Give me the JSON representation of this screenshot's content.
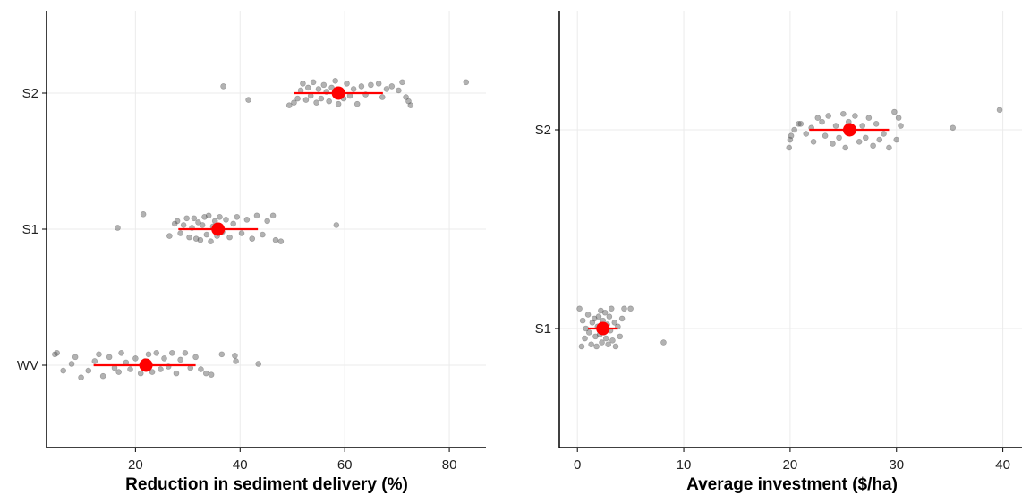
{
  "colors": {
    "point": "#555555",
    "point_opacity": 0.45,
    "summary": "#ff0000",
    "grid": "#ebebeb",
    "axis": "#000000"
  },
  "chart_data": [
    {
      "type": "scatter",
      "subtype": "jittered dot plot with mean and range",
      "xlabel": "Reduction in sediment delivery (%)",
      "ylabel": "",
      "categories": [
        "WV",
        "S1",
        "S2"
      ],
      "xlim": [
        3,
        87
      ],
      "xticks": [
        20,
        40,
        60,
        80
      ],
      "grid": true,
      "legend": "none",
      "series": [
        {
          "category": "S2",
          "mean": 58.8,
          "interval": [
            50.3,
            67.3
          ],
          "points": [
            {
              "x": 36.8,
              "j": 0.05
            },
            {
              "x": 41.6,
              "j": -0.05
            },
            {
              "x": 49.4,
              "j": -0.09
            },
            {
              "x": 50.3,
              "j": -0.07
            },
            {
              "x": 51.0,
              "j": -0.04
            },
            {
              "x": 51.6,
              "j": 0.02
            },
            {
              "x": 52.0,
              "j": 0.07
            },
            {
              "x": 52.6,
              "j": -0.05
            },
            {
              "x": 53.0,
              "j": 0.04
            },
            {
              "x": 53.5,
              "j": -0.02
            },
            {
              "x": 54.0,
              "j": 0.08
            },
            {
              "x": 54.6,
              "j": -0.07
            },
            {
              "x": 55.0,
              "j": 0.03
            },
            {
              "x": 55.5,
              "j": -0.04
            },
            {
              "x": 56.0,
              "j": 0.06
            },
            {
              "x": 56.5,
              "j": 0.01
            },
            {
              "x": 57.0,
              "j": -0.06
            },
            {
              "x": 57.5,
              "j": 0.04
            },
            {
              "x": 58.2,
              "j": 0.09
            },
            {
              "x": 58.8,
              "j": -0.08
            },
            {
              "x": 59.3,
              "j": 0.02
            },
            {
              "x": 59.8,
              "j": -0.04
            },
            {
              "x": 60.4,
              "j": 0.07
            },
            {
              "x": 61.0,
              "j": -0.02
            },
            {
              "x": 61.7,
              "j": 0.03
            },
            {
              "x": 62.4,
              "j": -0.08
            },
            {
              "x": 63.2,
              "j": 0.05
            },
            {
              "x": 64.0,
              "j": -0.01
            },
            {
              "x": 65.0,
              "j": 0.06
            },
            {
              "x": 66.5,
              "j": 0.07
            },
            {
              "x": 67.2,
              "j": -0.03
            },
            {
              "x": 68.0,
              "j": 0.03
            },
            {
              "x": 69.0,
              "j": 0.05
            },
            {
              "x": 70.3,
              "j": 0.02
            },
            {
              "x": 71.0,
              "j": 0.08
            },
            {
              "x": 71.7,
              "j": -0.03
            },
            {
              "x": 72.2,
              "j": -0.06
            },
            {
              "x": 72.6,
              "j": -0.09
            },
            {
              "x": 83.2,
              "j": 0.08
            }
          ]
        },
        {
          "category": "S1",
          "mean": 35.8,
          "interval": [
            28.2,
            43.4
          ],
          "points": [
            {
              "x": 16.6,
              "j": 0.01
            },
            {
              "x": 21.5,
              "j": 0.11
            },
            {
              "x": 26.5,
              "j": -0.05
            },
            {
              "x": 27.5,
              "j": 0.04
            },
            {
              "x": 28.0,
              "j": 0.06
            },
            {
              "x": 28.6,
              "j": -0.03
            },
            {
              "x": 29.2,
              "j": 0.03
            },
            {
              "x": 29.8,
              "j": 0.08
            },
            {
              "x": 30.3,
              "j": -0.06
            },
            {
              "x": 30.8,
              "j": 0.01
            },
            {
              "x": 31.2,
              "j": 0.08
            },
            {
              "x": 31.6,
              "j": -0.07
            },
            {
              "x": 32.0,
              "j": 0.05
            },
            {
              "x": 32.4,
              "j": -0.08
            },
            {
              "x": 32.8,
              "j": 0.03
            },
            {
              "x": 33.2,
              "j": 0.09
            },
            {
              "x": 33.6,
              "j": -0.04
            },
            {
              "x": 34.0,
              "j": 0.1
            },
            {
              "x": 34.4,
              "j": -0.09
            },
            {
              "x": 34.8,
              "j": 0.02
            },
            {
              "x": 35.2,
              "j": 0.06
            },
            {
              "x": 35.6,
              "j": -0.05
            },
            {
              "x": 36.1,
              "j": 0.09
            },
            {
              "x": 36.6,
              "j": -0.02
            },
            {
              "x": 37.3,
              "j": 0.07
            },
            {
              "x": 38.0,
              "j": -0.06
            },
            {
              "x": 38.7,
              "j": 0.04
            },
            {
              "x": 39.4,
              "j": 0.09
            },
            {
              "x": 40.3,
              "j": -0.03
            },
            {
              "x": 41.3,
              "j": 0.07
            },
            {
              "x": 42.3,
              "j": -0.07
            },
            {
              "x": 43.2,
              "j": 0.1
            },
            {
              "x": 44.3,
              "j": -0.04
            },
            {
              "x": 45.2,
              "j": 0.06
            },
            {
              "x": 46.3,
              "j": 0.1
            },
            {
              "x": 46.8,
              "j": -0.08
            },
            {
              "x": 47.8,
              "j": -0.09
            },
            {
              "x": 58.4,
              "j": 0.03
            }
          ]
        },
        {
          "category": "WV",
          "mean": 22.0,
          "interval": [
            12.0,
            31.5
          ],
          "points": [
            {
              "x": 4.6,
              "j": 0.08
            },
            {
              "x": 5.0,
              "j": 0.09
            },
            {
              "x": 6.2,
              "j": -0.04
            },
            {
              "x": 7.8,
              "j": 0.01
            },
            {
              "x": 8.5,
              "j": 0.06
            },
            {
              "x": 9.6,
              "j": -0.09
            },
            {
              "x": 11.0,
              "j": -0.04
            },
            {
              "x": 12.2,
              "j": 0.03
            },
            {
              "x": 13.0,
              "j": 0.08
            },
            {
              "x": 13.8,
              "j": -0.08
            },
            {
              "x": 15.0,
              "j": 0.06
            },
            {
              "x": 16.0,
              "j": -0.02
            },
            {
              "x": 16.8,
              "j": -0.05
            },
            {
              "x": 17.3,
              "j": 0.09
            },
            {
              "x": 18.2,
              "j": 0.02
            },
            {
              "x": 19.0,
              "j": -0.03
            },
            {
              "x": 20.0,
              "j": 0.05
            },
            {
              "x": 21.0,
              "j": -0.06
            },
            {
              "x": 21.8,
              "j": 0.03
            },
            {
              "x": 22.5,
              "j": 0.08
            },
            {
              "x": 23.2,
              "j": -0.05
            },
            {
              "x": 24.0,
              "j": 0.09
            },
            {
              "x": 24.8,
              "j": -0.03
            },
            {
              "x": 25.5,
              "j": 0.05
            },
            {
              "x": 26.3,
              "j": -0.01
            },
            {
              "x": 27.0,
              "j": 0.09
            },
            {
              "x": 27.8,
              "j": -0.06
            },
            {
              "x": 28.6,
              "j": 0.04
            },
            {
              "x": 29.5,
              "j": 0.09
            },
            {
              "x": 30.5,
              "j": -0.02
            },
            {
              "x": 31.5,
              "j": 0.06
            },
            {
              "x": 32.5,
              "j": -0.03
            },
            {
              "x": 33.5,
              "j": -0.06
            },
            {
              "x": 34.5,
              "j": -0.07
            },
            {
              "x": 36.5,
              "j": 0.08
            },
            {
              "x": 39.0,
              "j": 0.07
            },
            {
              "x": 39.2,
              "j": 0.03
            },
            {
              "x": 43.5,
              "j": 0.01
            }
          ]
        }
      ]
    },
    {
      "type": "scatter",
      "subtype": "jittered dot plot with mean and range",
      "xlabel": "Average investment ($/ha)",
      "ylabel": "",
      "categories": [
        "S1",
        "S2"
      ],
      "xlim": [
        -1.7,
        41.8
      ],
      "xticks": [
        0,
        10,
        20,
        30,
        40
      ],
      "grid": true,
      "legend": "none",
      "series": [
        {
          "category": "S2",
          "mean": 25.6,
          "interval": [
            21.8,
            29.3
          ],
          "points": [
            {
              "x": 19.9,
              "j": -0.09
            },
            {
              "x": 20.0,
              "j": -0.05
            },
            {
              "x": 20.1,
              "j": -0.03
            },
            {
              "x": 20.4,
              "j": 0.0
            },
            {
              "x": 20.8,
              "j": 0.03
            },
            {
              "x": 21.0,
              "j": 0.03
            },
            {
              "x": 21.5,
              "j": -0.02
            },
            {
              "x": 22.0,
              "j": 0.01
            },
            {
              "x": 22.2,
              "j": -0.06
            },
            {
              "x": 22.6,
              "j": 0.06
            },
            {
              "x": 23.0,
              "j": 0.04
            },
            {
              "x": 23.3,
              "j": -0.03
            },
            {
              "x": 23.6,
              "j": 0.07
            },
            {
              "x": 24.0,
              "j": -0.07
            },
            {
              "x": 24.3,
              "j": 0.02
            },
            {
              "x": 24.6,
              "j": -0.04
            },
            {
              "x": 25.0,
              "j": 0.08
            },
            {
              "x": 25.2,
              "j": -0.09
            },
            {
              "x": 25.5,
              "j": 0.04
            },
            {
              "x": 25.8,
              "j": -0.01
            },
            {
              "x": 26.1,
              "j": 0.07
            },
            {
              "x": 26.5,
              "j": -0.06
            },
            {
              "x": 26.8,
              "j": 0.02
            },
            {
              "x": 27.1,
              "j": -0.04
            },
            {
              "x": 27.4,
              "j": 0.06
            },
            {
              "x": 27.8,
              "j": -0.08
            },
            {
              "x": 28.1,
              "j": 0.03
            },
            {
              "x": 28.4,
              "j": -0.05
            },
            {
              "x": 28.8,
              "j": -0.02
            },
            {
              "x": 29.3,
              "j": -0.09
            },
            {
              "x": 29.8,
              "j": 0.09
            },
            {
              "x": 30.0,
              "j": -0.05
            },
            {
              "x": 30.2,
              "j": 0.06
            },
            {
              "x": 30.4,
              "j": 0.02
            },
            {
              "x": 35.3,
              "j": 0.01
            },
            {
              "x": 39.7,
              "j": 0.1
            }
          ]
        },
        {
          "category": "S1",
          "mean": 2.4,
          "interval": [
            1.0,
            3.8
          ],
          "points": [
            {
              "x": 0.2,
              "j": 0.1
            },
            {
              "x": 0.4,
              "j": -0.09
            },
            {
              "x": 0.5,
              "j": 0.04
            },
            {
              "x": 0.7,
              "j": -0.05
            },
            {
              "x": 0.8,
              "j": 0.0
            },
            {
              "x": 1.0,
              "j": 0.07
            },
            {
              "x": 1.1,
              "j": -0.02
            },
            {
              "x": 1.3,
              "j": -0.08
            },
            {
              "x": 1.4,
              "j": 0.03
            },
            {
              "x": 1.6,
              "j": 0.05
            },
            {
              "x": 1.7,
              "j": -0.04
            },
            {
              "x": 1.8,
              "j": -0.09
            },
            {
              "x": 1.9,
              "j": 0.01
            },
            {
              "x": 2.0,
              "j": 0.06
            },
            {
              "x": 2.1,
              "j": -0.03
            },
            {
              "x": 2.2,
              "j": 0.09
            },
            {
              "x": 2.3,
              "j": -0.07
            },
            {
              "x": 2.4,
              "j": 0.04
            },
            {
              "x": 2.5,
              "j": -0.02
            },
            {
              "x": 2.6,
              "j": 0.08
            },
            {
              "x": 2.7,
              "j": -0.05
            },
            {
              "x": 2.8,
              "j": 0.02
            },
            {
              "x": 2.9,
              "j": -0.08
            },
            {
              "x": 3.0,
              "j": 0.06
            },
            {
              "x": 3.1,
              "j": -0.01
            },
            {
              "x": 3.2,
              "j": 0.1
            },
            {
              "x": 3.3,
              "j": -0.06
            },
            {
              "x": 3.5,
              "j": 0.03
            },
            {
              "x": 3.6,
              "j": -0.09
            },
            {
              "x": 3.8,
              "j": 0.01
            },
            {
              "x": 4.0,
              "j": -0.04
            },
            {
              "x": 4.2,
              "j": 0.05
            },
            {
              "x": 4.4,
              "j": 0.1
            },
            {
              "x": 5.0,
              "j": 0.1
            },
            {
              "x": 8.1,
              "j": -0.07
            }
          ]
        }
      ]
    }
  ]
}
